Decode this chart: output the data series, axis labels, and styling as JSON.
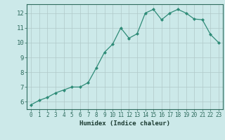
{
  "x": [
    0,
    1,
    2,
    3,
    4,
    5,
    6,
    7,
    8,
    9,
    10,
    11,
    12,
    13,
    14,
    15,
    16,
    17,
    18,
    19,
    20,
    21,
    22,
    23
  ],
  "y": [
    5.8,
    6.1,
    6.3,
    6.6,
    6.8,
    7.0,
    7.0,
    7.3,
    8.3,
    9.35,
    9.9,
    11.0,
    10.3,
    10.6,
    12.0,
    12.25,
    11.55,
    12.0,
    12.25,
    12.0,
    11.6,
    11.55,
    10.55,
    10.0
  ],
  "line_color": "#2e8b77",
  "marker": "D",
  "marker_size": 2,
  "bg_color": "#cce9e9",
  "grid_color": "#b0c8c8",
  "xlabel": "Humidex (Indice chaleur)",
  "ylim": [
    5.5,
    12.6
  ],
  "xlim": [
    -0.5,
    23.5
  ],
  "yticks": [
    6,
    7,
    8,
    9,
    10,
    11,
    12
  ],
  "xticks": [
    0,
    1,
    2,
    3,
    4,
    5,
    6,
    7,
    8,
    9,
    10,
    11,
    12,
    13,
    14,
    15,
    16,
    17,
    18,
    19,
    20,
    21,
    22,
    23
  ],
  "tick_color": "#2e6b5e",
  "label_color": "#1a3a30",
  "spine_color": "#2e6b5e",
  "xlabel_fontsize": 6.5,
  "ytick_fontsize": 6.5,
  "xtick_fontsize": 5.5
}
